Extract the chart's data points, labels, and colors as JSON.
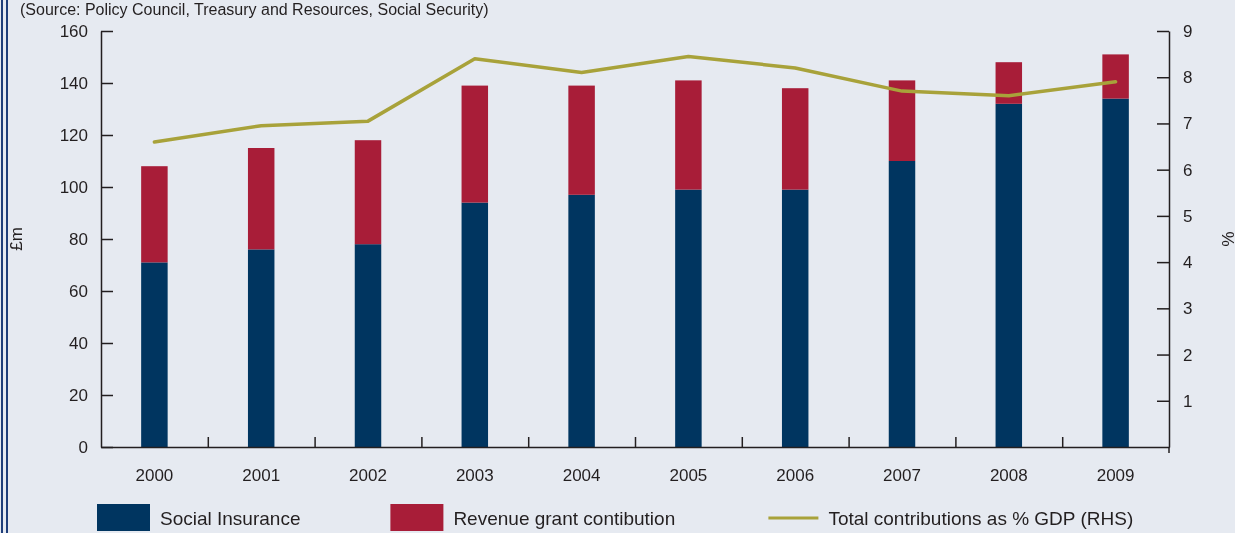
{
  "chart_data": {
    "type": "bar",
    "stacked": true,
    "annotations": [
      "(Source: Policy Council, Treasury and Resources, Social Security)"
    ],
    "ylabel": "£m",
    "y2label": "%",
    "categories": [
      "2000",
      "2001",
      "2002",
      "2003",
      "2004",
      "2005",
      "2006",
      "2007",
      "2008",
      "2009"
    ],
    "series": [
      {
        "name": "Social Insurance",
        "color": "#003560",
        "values": [
          71,
          76,
          78,
          94,
          97,
          99,
          99,
          110,
          132,
          134
        ]
      },
      {
        "name": "Revenue grant contibution",
        "color": "#a81d38",
        "values": [
          37,
          39,
          40,
          45,
          42,
          42,
          39,
          31,
          16,
          17
        ]
      },
      {
        "name": "Total contributions as % GDP (RHS)",
        "type": "line",
        "axis": "y2",
        "color": "#a8a23a",
        "values": [
          6.6,
          6.95,
          7.05,
          8.4,
          8.1,
          8.45,
          8.2,
          7.7,
          7.6,
          7.9
        ]
      }
    ],
    "ylim": [
      0,
      160
    ],
    "yticks": [
      0,
      20,
      40,
      60,
      80,
      100,
      120,
      140,
      160
    ],
    "y2lim": [
      0,
      9
    ],
    "y2ticks": [
      1,
      2,
      3,
      4,
      5,
      6,
      7,
      8,
      9
    ],
    "legend": "bottom"
  }
}
